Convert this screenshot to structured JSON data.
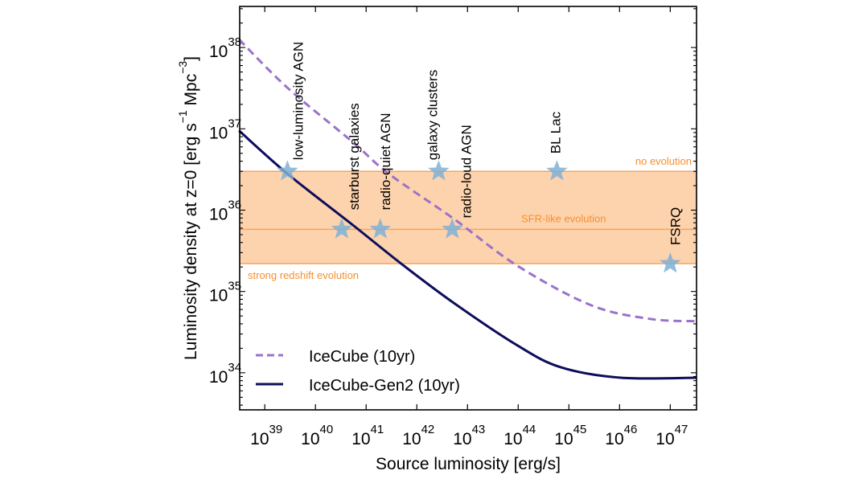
{
  "chart_data": {
    "type": "line",
    "xlabel": "Source luminosity [erg/s]",
    "ylabel_parts": [
      "Luminosity density at z=0 [erg s",
      "−1",
      " Mpc",
      "−3",
      "]"
    ],
    "xscale": "log",
    "yscale": "log",
    "xlim": [
      3.2e+38,
      3.3e+47
    ],
    "ylim": [
      3.5e+33,
      3.2e+38
    ],
    "x_ticks": [
      {
        "base": "10",
        "exp": "39",
        "value": 1e+39
      },
      {
        "base": "10",
        "exp": "40",
        "value": 1e+40
      },
      {
        "base": "10",
        "exp": "41",
        "value": 1e+41
      },
      {
        "base": "10",
        "exp": "42",
        "value": 1e+42
      },
      {
        "base": "10",
        "exp": "43",
        "value": 1e+43
      },
      {
        "base": "10",
        "exp": "44",
        "value": 1e+44
      },
      {
        "base": "10",
        "exp": "45",
        "value": 1e+45
      },
      {
        "base": "10",
        "exp": "46",
        "value": 1e+46
      },
      {
        "base": "10",
        "exp": "47",
        "value": 1e+47
      }
    ],
    "y_ticks": [
      {
        "base": "10",
        "exp": "34",
        "value": 1e+34
      },
      {
        "base": "10",
        "exp": "35",
        "value": 1e+35
      },
      {
        "base": "10",
        "exp": "36",
        "value": 1e+36
      },
      {
        "base": "10",
        "exp": "37",
        "value": 1e+37
      },
      {
        "base": "10",
        "exp": "38",
        "value": 1e+38
      }
    ],
    "grid": false,
    "legend_position": "bottom-left",
    "series": [
      {
        "name": "IceCube (10yr)",
        "style": "dashed",
        "color": "#9b72c9",
        "x": [
          3.1e+38,
          2.8e+39,
          5.4e+40,
          2.8e+41,
          5.4e+42,
          9.3e+43,
          2.7e+45,
          4e+46,
          3.3e+47
        ],
        "y": [
          1.26e+38,
          3.2e+37,
          6.9e+36,
          2.8e+36,
          7.8e+35,
          2.1e+35,
          6.8e+34,
          4.6e+34,
          4.3e+34
        ]
      },
      {
        "name": "IceCube-Gen2 (10yr)",
        "style": "solid",
        "color": "#0d0d5c",
        "x": [
          3.1e+38,
          2.8e+39,
          5.4e+40,
          5.4e+41,
          5.4e+42,
          9.3e+43,
          6.9e+44,
          1.05e+46,
          3.3e+47
        ],
        "y": [
          9.5e+36,
          2.8e+36,
          6.6e+35,
          2.1e+35,
          7.2e+34,
          2.2e+34,
          1.17e+34,
          8.7e+33,
          8.7e+33
        ]
      }
    ],
    "band": {
      "color": "#fdd3ad",
      "line_color": "#f7a35c",
      "text_color": "#f39030",
      "upper": 3e+36,
      "middle": 5.8e+35,
      "lower": 2.2e+35,
      "upper_label": "no evolution",
      "middle_label": "SFR-like evolution",
      "lower_label": "strong redshift evolution"
    },
    "sources": {
      "marker_color": "#7fb0d6",
      "points": [
        {
          "label": "low-luminosity AGN",
          "x": 2.8e+39,
          "y": 3e+36
        },
        {
          "label": "starburst galaxies",
          "x": 3.3e+40,
          "y": 5.8e+35
        },
        {
          "label": "radio-quiet AGN",
          "x": 1.9e+41,
          "y": 5.8e+35
        },
        {
          "label": "galaxy clusters",
          "x": 2.7e+42,
          "y": 3e+36
        },
        {
          "label": "radio-loud AGN",
          "x": 5e+42,
          "y": 5.8e+35
        },
        {
          "label": "BL Lac",
          "x": 5.8e+44,
          "y": 3e+36
        },
        {
          "label": "FSRQ",
          "x": 1e+47,
          "y": 2.2e+35
        }
      ]
    }
  }
}
